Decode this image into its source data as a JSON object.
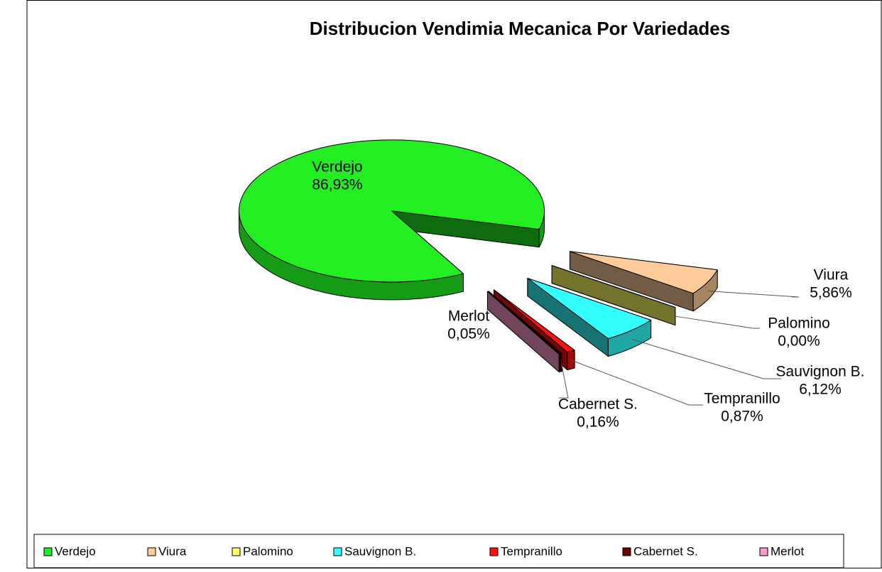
{
  "chart_data": {
    "type": "pie",
    "title": "Distribucion Vendimia Mecanica Por Variedades",
    "categories": [
      "Verdejo",
      "Viura",
      "Palomino",
      "Sauvignon B.",
      "Tempranillo",
      "Cabernet S.",
      "Merlot"
    ],
    "values": [
      86.93,
      5.86,
      0.0,
      6.12,
      0.87,
      0.16,
      0.05
    ],
    "value_labels": [
      "86,93%",
      "5,86%",
      "0,00%",
      "6,12%",
      "0,87%",
      "0,16%",
      "0,05%"
    ],
    "colors": [
      "#22ee22",
      "#ffcc99",
      "#ffff66",
      "#33ffff",
      "#ff1111",
      "#700000",
      "#ff99cc"
    ],
    "legend": "bottom"
  }
}
